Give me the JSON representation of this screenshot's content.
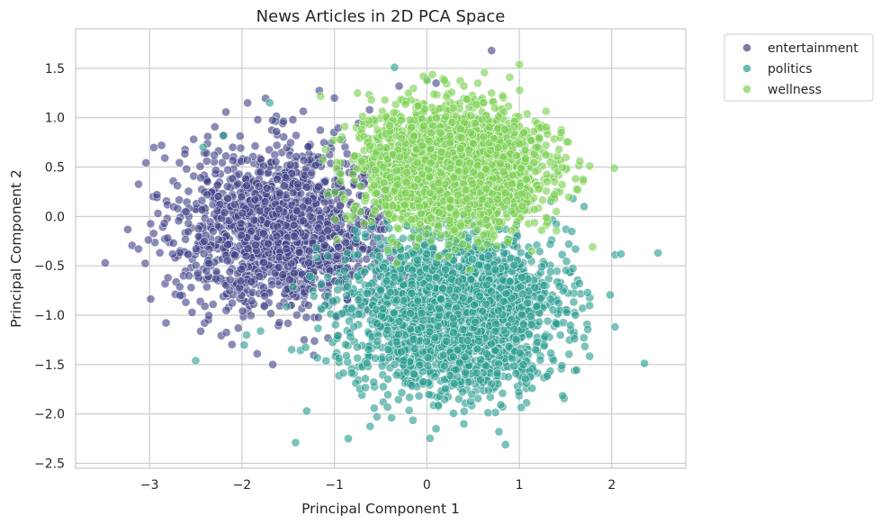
{
  "chart_data": {
    "type": "scatter",
    "title": "News Articles in 2D PCA Space",
    "xlabel": "Principal Component 1",
    "ylabel": "Principal Component 2",
    "xlim": [
      -3.8,
      2.8
    ],
    "ylim": [
      -2.55,
      1.9
    ],
    "x_ticks": [
      -3,
      -2,
      -1,
      0,
      1,
      2
    ],
    "y_ticks": [
      1.5,
      1.0,
      0.5,
      0.0,
      -0.5,
      -1.0,
      -1.5,
      -2.0,
      -2.5
    ],
    "x_tick_labels": [
      "−3",
      "−2",
      "−1",
      "0",
      "1",
      "2"
    ],
    "y_tick_labels": [
      "1.5",
      "1.0",
      "0.5",
      "0.0",
      "−0.5",
      "−1.0",
      "−1.5",
      "−2.0",
      "−2.5"
    ],
    "grid": true,
    "legend_position": "outside-top-right",
    "series": [
      {
        "name": "entertainment",
        "color": "#414487",
        "cluster": {
          "center": [
            -1.55,
            -0.12
          ],
          "spread": [
            0.58,
            0.42
          ],
          "n": 1500
        },
        "points": [
          [
            -3.48,
            -0.47
          ],
          [
            -3.12,
            -0.33
          ],
          [
            -2.87,
            0.72
          ],
          [
            -2.92,
            0.22
          ],
          [
            -2.6,
            0.48
          ],
          [
            -2.75,
            -0.38
          ],
          [
            0.7,
            1.68
          ],
          [
            -0.62,
            1.08
          ],
          [
            -1.0,
            1.2
          ],
          [
            -0.3,
            1.32
          ],
          [
            0.1,
            1.35
          ],
          [
            -2.1,
            0.7
          ],
          [
            -2.3,
            0.62
          ],
          [
            -1.45,
            0.98
          ],
          [
            -2.8,
            -0.62
          ],
          [
            -2.55,
            -0.72
          ]
        ]
      },
      {
        "name": "politics",
        "color": "#2a9d8f",
        "cluster": {
          "center": [
            0.3,
            -0.95
          ],
          "spread": [
            0.55,
            0.4
          ],
          "n": 2500
        },
        "points": [
          [
            -0.35,
            1.51
          ],
          [
            0.0,
            1.39
          ],
          [
            1.7,
            0.1
          ],
          [
            1.58,
            0.18
          ],
          [
            2.1,
            -0.38
          ],
          [
            2.5,
            -0.37
          ],
          [
            -1.7,
            1.15
          ],
          [
            -2.42,
            0.7
          ],
          [
            -2.2,
            0.82
          ],
          [
            -2.5,
            -1.46
          ],
          [
            -1.42,
            -2.29
          ],
          [
            -0.85,
            -2.25
          ],
          [
            -1.3,
            -1.97
          ],
          [
            0.78,
            -2.18
          ],
          [
            0.85,
            -2.31
          ],
          [
            0.4,
            -2.1
          ],
          [
            1.3,
            -1.62
          ],
          [
            1.6,
            -0.7
          ],
          [
            1.65,
            -0.68
          ],
          [
            -1.95,
            -1.2
          ],
          [
            -1.8,
            -1.16
          ],
          [
            0.1,
            -2.15
          ]
        ]
      },
      {
        "name": "wellness",
        "color": "#7ad151",
        "cluster": {
          "center": [
            0.28,
            0.48
          ],
          "spread": [
            0.48,
            0.3
          ],
          "n": 2500
        },
        "points": [
          [
            0.55,
            1.35
          ],
          [
            0.4,
            1.32
          ],
          [
            -0.75,
            1.25
          ],
          [
            -0.2,
            1.25
          ],
          [
            1.3,
            0.35
          ],
          [
            1.4,
            0.05
          ],
          [
            1.35,
            0.18
          ],
          [
            1.2,
            0.7
          ],
          [
            1.05,
            0.85
          ],
          [
            0.7,
            1.25
          ],
          [
            -0.6,
            1.18
          ],
          [
            1.38,
            0.22
          ]
        ]
      }
    ]
  }
}
